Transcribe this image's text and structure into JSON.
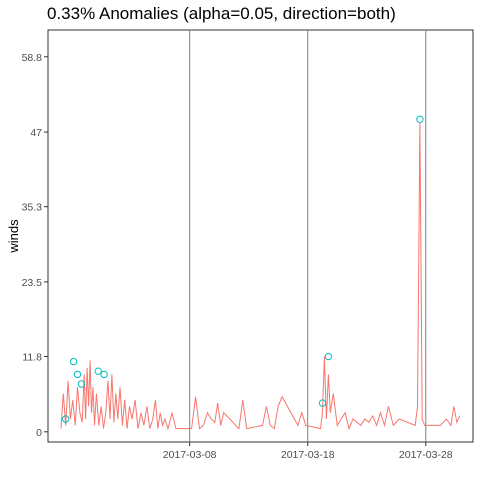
{
  "chart_data": {
    "type": "line",
    "title": "0.33% Anomalies (alpha=0.05, direction=both)",
    "xlabel": "",
    "ylabel": "winds",
    "ylim": [
      -1.6,
      63.0
    ],
    "xlim": [
      "2017-02-24",
      "2017-04-01"
    ],
    "y_ticks": [
      0,
      11.8,
      23.5,
      35.3,
      47,
      58.8
    ],
    "y_tick_labels": [
      "0",
      "11.8",
      "23.5",
      "35.3",
      "47",
      "58.8"
    ],
    "x_ticks": [
      "2017-03-08",
      "2017-03-18",
      "2017-03-28"
    ],
    "grid": false,
    "legend": "none",
    "series_color": "#F8766D",
    "anomaly_color": "#00BFC4",
    "vline_color": "#808080",
    "series": [
      {
        "points": [
          [
            "2017-02-25",
            0.5
          ],
          [
            "2017-02-25",
            6
          ],
          [
            "2017-02-25",
            1
          ],
          [
            "2017-02-25",
            8
          ],
          [
            "2017-02-25",
            2
          ],
          [
            "2017-02-26",
            5
          ],
          [
            "2017-02-26",
            1
          ],
          [
            "2017-02-26",
            7
          ],
          [
            "2017-02-26",
            3
          ],
          [
            "2017-02-26",
            1.5
          ],
          [
            "2017-02-27",
            9
          ],
          [
            "2017-02-27",
            2
          ],
          [
            "2017-02-27",
            10
          ],
          [
            "2017-02-27",
            4
          ],
          [
            "2017-02-27",
            11.2
          ],
          [
            "2017-02-27",
            3
          ],
          [
            "2017-02-27",
            7
          ],
          [
            "2017-02-27",
            1
          ],
          [
            "2017-02-28",
            6
          ],
          [
            "2017-02-28",
            1
          ],
          [
            "2017-02-28",
            4
          ],
          [
            "2017-02-28",
            0.5
          ],
          [
            "2017-02-28",
            3
          ],
          [
            "2017-03-01",
            8
          ],
          [
            "2017-03-01",
            2
          ],
          [
            "2017-03-01",
            9
          ],
          [
            "2017-03-01",
            1.5
          ],
          [
            "2017-03-01",
            6
          ],
          [
            "2017-03-01",
            2
          ],
          [
            "2017-03-02",
            7
          ],
          [
            "2017-03-02",
            1
          ],
          [
            "2017-03-02",
            5
          ],
          [
            "2017-03-02",
            0.5
          ],
          [
            "2017-03-02",
            4
          ],
          [
            "2017-03-03",
            2
          ],
          [
            "2017-03-03",
            5
          ],
          [
            "2017-03-03",
            0.5
          ],
          [
            "2017-03-03",
            3
          ],
          [
            "2017-03-04",
            1
          ],
          [
            "2017-03-04",
            4
          ],
          [
            "2017-03-04",
            0.5
          ],
          [
            "2017-03-04",
            2
          ],
          [
            "2017-03-05",
            5
          ],
          [
            "2017-03-05",
            0.5
          ],
          [
            "2017-03-05",
            3
          ],
          [
            "2017-03-05",
            1
          ],
          [
            "2017-03-05",
            2
          ],
          [
            "2017-03-06",
            0.5
          ],
          [
            "2017-03-06",
            3
          ],
          [
            "2017-03-06",
            0.5
          ],
          [
            "2017-03-08",
            0.5
          ],
          [
            "2017-03-08",
            5.5
          ],
          [
            "2017-03-08",
            0.5
          ],
          [
            "2017-03-09",
            1
          ],
          [
            "2017-03-09",
            3
          ],
          [
            "2017-03-09",
            2
          ],
          [
            "2017-03-10",
            1.5
          ],
          [
            "2017-03-10",
            4.5
          ],
          [
            "2017-03-10",
            1
          ],
          [
            "2017-03-10",
            3
          ],
          [
            "2017-03-12",
            0.5
          ],
          [
            "2017-03-12",
            5
          ],
          [
            "2017-03-12",
            0.5
          ],
          [
            "2017-03-14",
            1
          ],
          [
            "2017-03-14",
            4
          ],
          [
            "2017-03-14",
            1
          ],
          [
            "2017-03-15",
            0.5
          ],
          [
            "2017-03-15",
            4
          ],
          [
            "2017-03-15",
            5.5
          ],
          [
            "2017-03-17",
            1
          ],
          [
            "2017-03-17",
            3
          ],
          [
            "2017-03-17",
            1
          ],
          [
            "2017-03-19",
            0.5
          ],
          [
            "2017-03-19",
            3
          ],
          [
            "2017-03-19",
            11.8
          ],
          [
            "2017-03-19",
            2
          ],
          [
            "2017-03-19",
            9
          ],
          [
            "2017-03-19",
            3
          ],
          [
            "2017-03-20",
            6
          ],
          [
            "2017-03-20",
            1
          ],
          [
            "2017-03-20",
            2
          ],
          [
            "2017-03-21",
            3
          ],
          [
            "2017-03-21",
            0.5
          ],
          [
            "2017-03-21",
            2
          ],
          [
            "2017-03-22",
            1.5
          ],
          [
            "2017-03-22",
            1
          ],
          [
            "2017-03-22",
            2
          ],
          [
            "2017-03-23",
            1.5
          ],
          [
            "2017-03-23",
            2.5
          ],
          [
            "2017-03-23",
            1
          ],
          [
            "2017-03-24",
            3
          ],
          [
            "2017-03-24",
            1
          ],
          [
            "2017-03-24",
            4
          ],
          [
            "2017-03-25",
            1
          ],
          [
            "2017-03-25",
            2
          ],
          [
            "2017-03-27",
            1
          ],
          [
            "2017-03-27",
            4
          ],
          [
            "2017-03-27",
            48.5
          ],
          [
            "2017-03-27",
            2
          ],
          [
            "2017-03-27",
            1
          ],
          [
            "2017-03-29",
            1
          ],
          [
            "2017-03-29",
            2
          ],
          [
            "2017-03-30",
            1
          ],
          [
            "2017-03-30",
            4
          ],
          [
            "2017-03-30",
            1.5
          ],
          [
            "2017-03-30",
            2.5
          ]
        ]
      }
    ],
    "anomalies": [
      [
        "2017-02-25",
        2
      ],
      [
        "2017-02-26",
        11
      ],
      [
        "2017-02-26",
        9
      ],
      [
        "2017-02-26",
        7.5
      ],
      [
        "2017-02-28",
        9.5
      ],
      [
        "2017-02-28",
        9
      ],
      [
        "2017-03-19",
        4.5
      ],
      [
        "2017-03-19",
        11.8
      ],
      [
        "2017-03-27",
        49
      ]
    ],
    "vlines": [
      "2017-03-08",
      "2017-03-18",
      "2017-03-28"
    ]
  }
}
